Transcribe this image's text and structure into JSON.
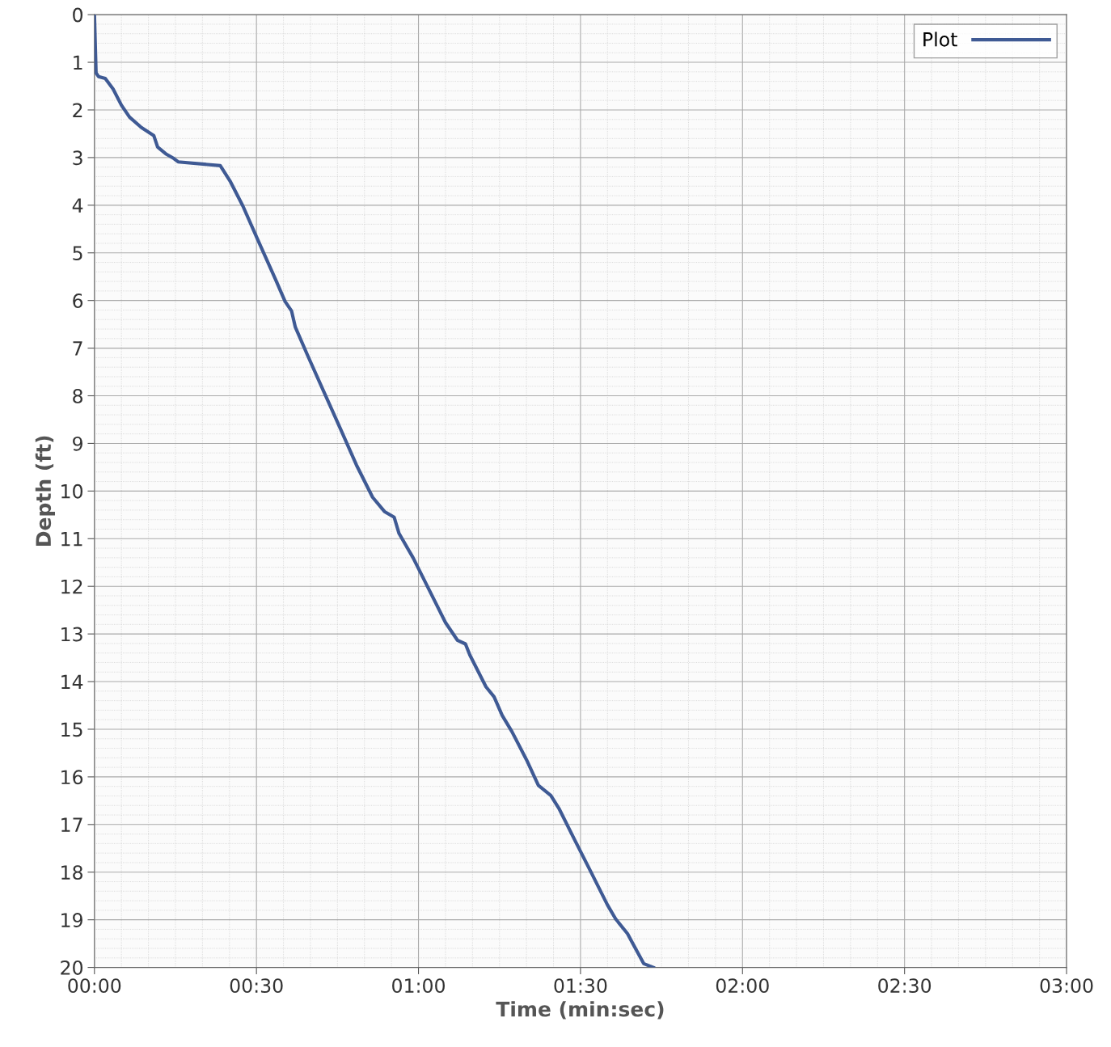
{
  "chart_data": {
    "type": "line",
    "xlabel": "Time (min:sec)",
    "ylabel": "Depth (ft)",
    "xlim": [
      0,
      180
    ],
    "ylim": [
      20,
      0
    ],
    "xticks": [
      {
        "value": 0,
        "label": "00:00"
      },
      {
        "value": 30,
        "label": "00:30"
      },
      {
        "value": 60,
        "label": "01:00"
      },
      {
        "value": 90,
        "label": "01:30"
      },
      {
        "value": 120,
        "label": "02:00"
      },
      {
        "value": 150,
        "label": "02:30"
      },
      {
        "value": 180,
        "label": "03:00"
      }
    ],
    "yticks": [
      0,
      1,
      2,
      3,
      4,
      5,
      6,
      7,
      8,
      9,
      10,
      11,
      12,
      13,
      14,
      15,
      16,
      17,
      18,
      19,
      20
    ],
    "grid": true,
    "legend": "top right",
    "marker": "none",
    "line_style": "solid",
    "series": [
      {
        "name": "Plot",
        "color": "#3f5a94",
        "x": [
          0,
          0.3,
          0.75,
          2,
          3.45,
          5,
          6.5,
          8.7,
          11,
          11.7,
          13.2,
          14.7,
          15.5,
          23.3,
          25.2,
          27.5,
          30.15,
          33.5,
          35.3,
          36.5,
          37.2,
          39.5,
          42.5,
          45.5,
          48.5,
          51.5,
          53.7,
          55.5,
          56.4,
          59,
          62,
          65,
          67.2,
          68.7,
          69.5,
          72.5,
          74,
          75.5,
          77.3,
          80,
          82.2,
          84.5,
          86,
          89,
          92,
          95,
          96.5,
          98.7,
          99.5,
          101.7,
          103.5
        ],
        "values": [
          0,
          1.22,
          1.3,
          1.34,
          1.56,
          1.9,
          2.15,
          2.37,
          2.54,
          2.78,
          2.92,
          3.02,
          3.09,
          3.17,
          3.51,
          4.02,
          4.7,
          5.55,
          6.02,
          6.22,
          6.56,
          7.16,
          7.92,
          8.68,
          9.45,
          10.13,
          10.43,
          10.55,
          10.89,
          11.4,
          12.08,
          12.76,
          13.13,
          13.21,
          13.44,
          14.11,
          14.32,
          14.71,
          15.05,
          15.64,
          16.18,
          16.39,
          16.66,
          17.34,
          18.01,
          18.69,
          18.98,
          19.29,
          19.46,
          19.92,
          20.0
        ]
      }
    ]
  }
}
